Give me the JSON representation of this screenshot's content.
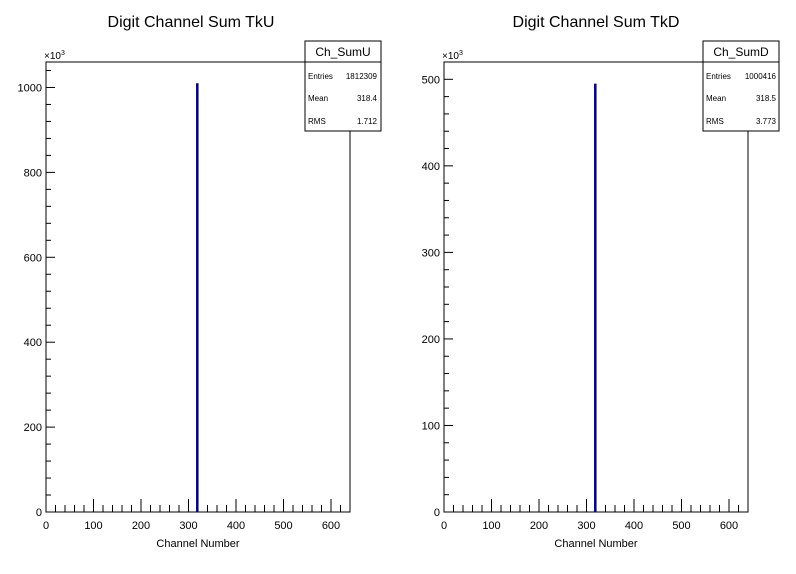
{
  "chart_data": [
    {
      "type": "bar",
      "title": "Digit Channel Sum TkU",
      "xlabel": "Channel Number",
      "ylabel": "",
      "multiplier_label": "×10",
      "multiplier_exp": "3",
      "xlim": [
        0,
        640
      ],
      "ylim": [
        0,
        1060
      ],
      "xticks": [
        0,
        100,
        200,
        300,
        400,
        500,
        600
      ],
      "yticks": [
        0,
        200,
        400,
        600,
        800,
        1000
      ],
      "bars": [
        {
          "x": 318,
          "value": 1010
        }
      ],
      "stats": {
        "name": "Ch_SumU",
        "rows": [
          {
            "label": "Entries",
            "value": "1812309"
          },
          {
            "label": "Mean",
            "value": "318.4"
          },
          {
            "label": "RMS",
            "value": "1.712"
          }
        ]
      },
      "color": "#000080"
    },
    {
      "type": "bar",
      "title": "Digit Channel Sum TkD",
      "xlabel": "Channel Number",
      "ylabel": "",
      "multiplier_label": "×10",
      "multiplier_exp": "3",
      "xlim": [
        0,
        640
      ],
      "ylim": [
        0,
        520
      ],
      "xticks": [
        0,
        100,
        200,
        300,
        400,
        500,
        600
      ],
      "yticks": [
        0,
        100,
        200,
        300,
        400,
        500
      ],
      "bars": [
        {
          "x": 318,
          "value": 495
        }
      ],
      "stats": {
        "name": "Ch_SumD",
        "rows": [
          {
            "label": "Entries",
            "value": "1000416"
          },
          {
            "label": "Mean",
            "value": "318.5"
          },
          {
            "label": "RMS",
            "value": "3.773"
          }
        ]
      },
      "color": "#000080"
    }
  ]
}
